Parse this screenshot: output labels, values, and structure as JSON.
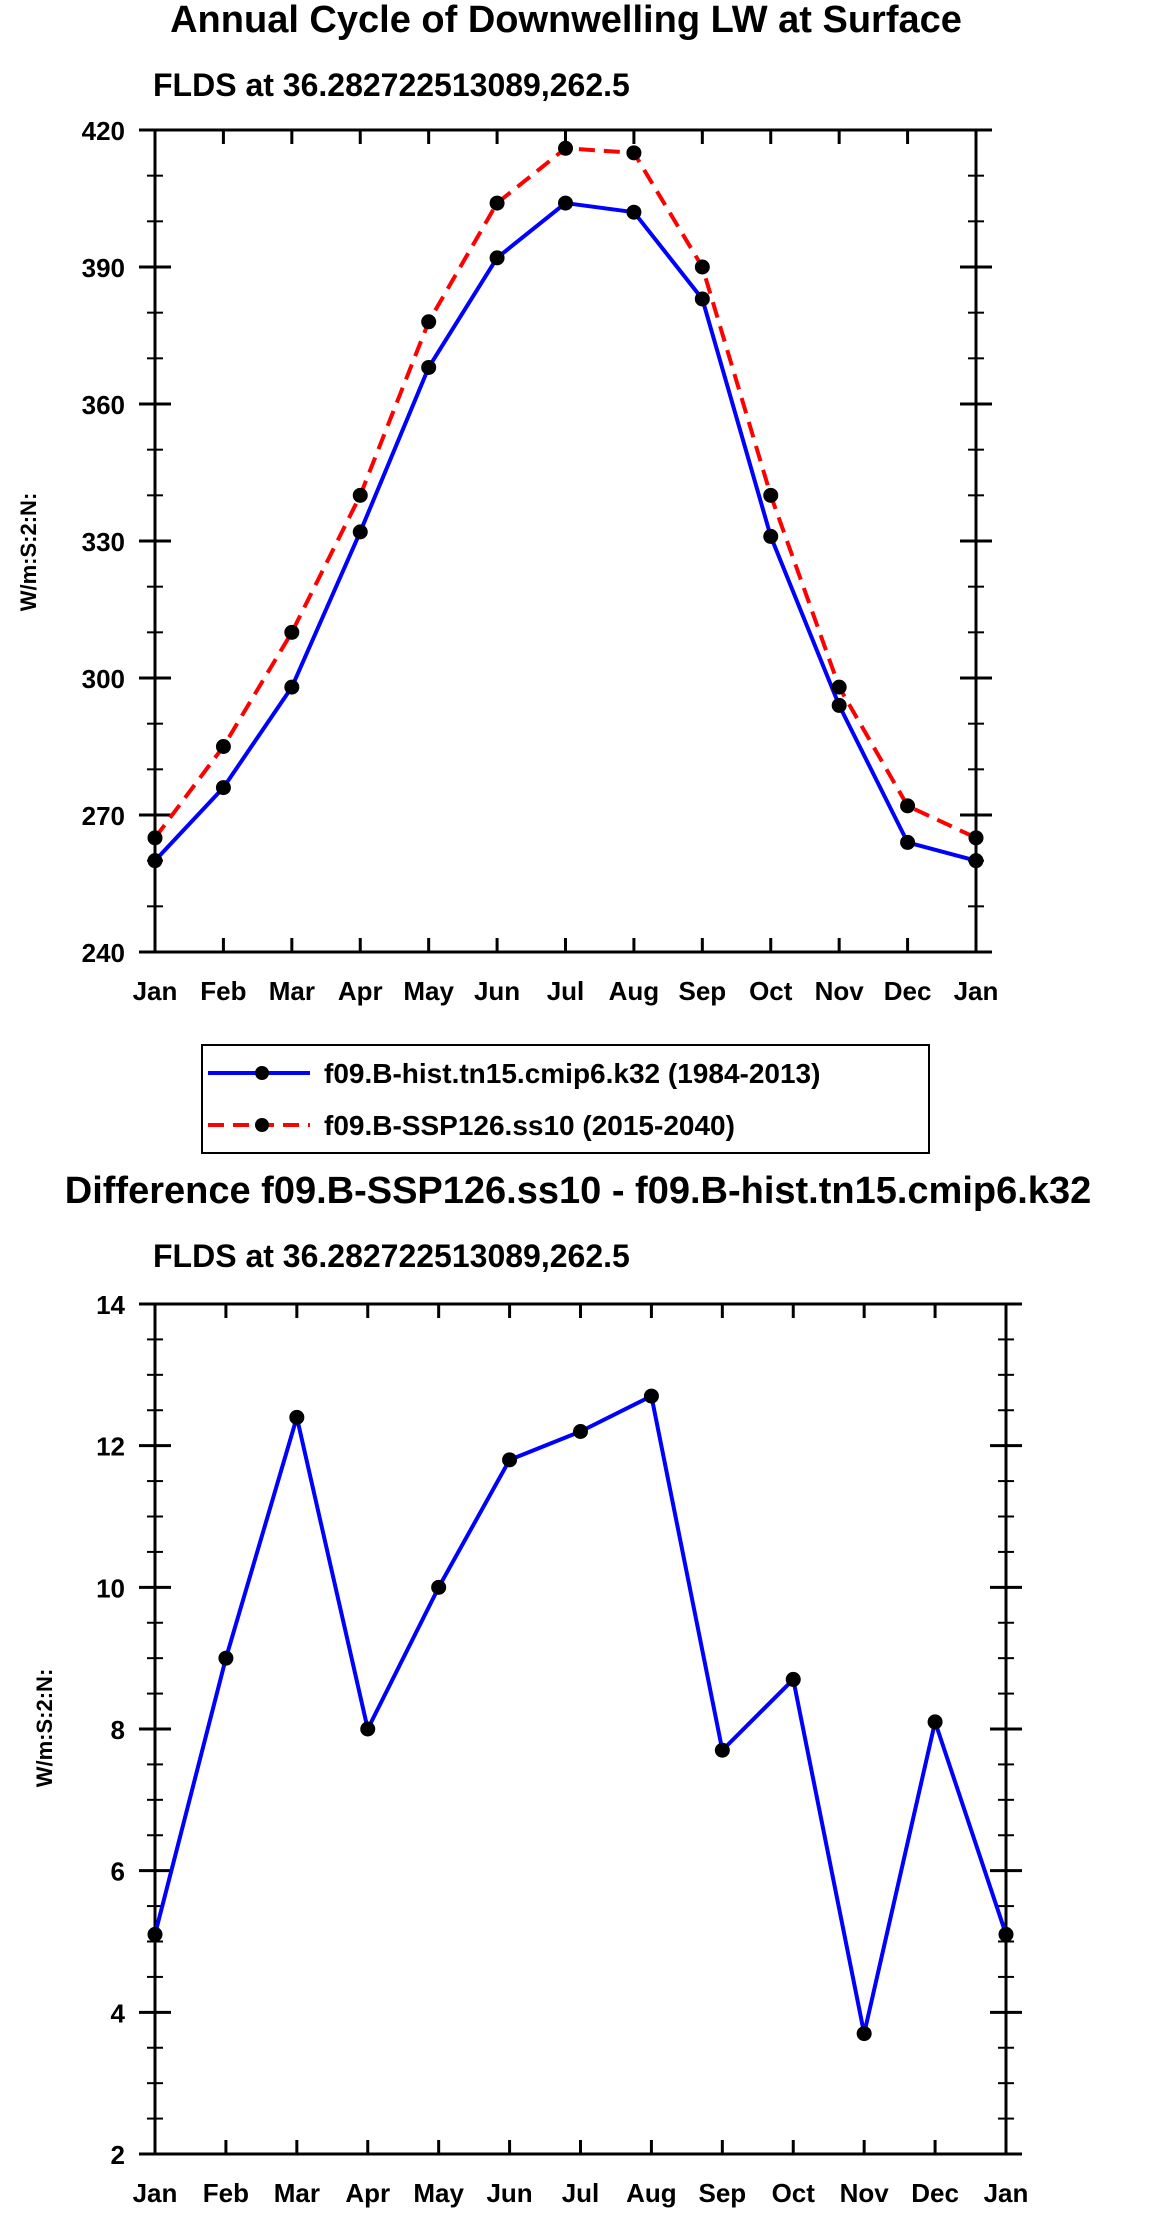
{
  "chart_data": [
    {
      "type": "line",
      "title": "Annual Cycle of Downwelling LW at Surface",
      "subtitle": "FLDS at 36.282722513089,262.5",
      "ylabel": "W/m:S:2:N:",
      "xlabel": "",
      "categories": [
        "Jan",
        "Feb",
        "Mar",
        "Apr",
        "May",
        "Jun",
        "Jul",
        "Aug",
        "Sep",
        "Oct",
        "Nov",
        "Dec",
        "Jan"
      ],
      "ylim": [
        240,
        420
      ],
      "yticks": [
        "240",
        "270",
        "300",
        "330",
        "360",
        "390",
        "420"
      ],
      "series": [
        {
          "name": "f09.B-hist.tn15.cmip6.k32 (1984-2013)",
          "color": "#0000ff",
          "dash": "solid",
          "values": [
            260,
            276,
            298,
            332,
            368,
            392,
            404,
            402,
            383,
            331,
            294,
            264,
            260
          ]
        },
        {
          "name": "f09.B-SSP126.ss10 (2015-2040)",
          "color": "#ff0000",
          "dash": "dashed",
          "values": [
            265,
            285,
            310,
            340,
            378,
            404,
            416,
            415,
            390,
            340,
            298,
            272,
            265
          ]
        }
      ],
      "legend": "bottom"
    },
    {
      "type": "line",
      "title": "Difference f09.B-SSP126.ss10 - f09.B-hist.tn15.cmip6.k32",
      "subtitle": "FLDS at 36.282722513089,262.5",
      "ylabel": "W/m:S:2:N:",
      "xlabel": "",
      "categories": [
        "Jan",
        "Feb",
        "Mar",
        "Apr",
        "May",
        "Jun",
        "Jul",
        "Aug",
        "Sep",
        "Oct",
        "Nov",
        "Dec",
        "Jan"
      ],
      "ylim": [
        2,
        14
      ],
      "yticks": [
        "2",
        "4",
        "6",
        "8",
        "10",
        "12",
        "14"
      ],
      "series": [
        {
          "name": "Difference",
          "color": "#0000ff",
          "dash": "solid",
          "values": [
            5.1,
            9.0,
            12.4,
            8.0,
            10.0,
            11.8,
            12.2,
            12.7,
            7.7,
            8.7,
            3.7,
            8.1,
            5.1
          ]
        }
      ]
    }
  ]
}
